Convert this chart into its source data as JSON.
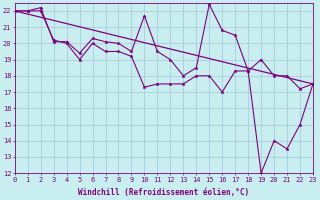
{
  "xlabel": "Windchill (Refroidissement éolien,°C)",
  "line_color": "#800080",
  "bg_color": "#c8eef0",
  "grid_color": "#a0c8d8",
  "xlim": [
    0,
    23
  ],
  "ylim": [
    12,
    22.5
  ],
  "xtick_vals": [
    0,
    1,
    2,
    3,
    4,
    5,
    6,
    7,
    8,
    9,
    10,
    11,
    12,
    13,
    14,
    15,
    16,
    17,
    18,
    19,
    20,
    21,
    22,
    23
  ],
  "ytick_vals": [
    12,
    13,
    14,
    15,
    16,
    17,
    18,
    19,
    20,
    21,
    22
  ],
  "line1_x": [
    0,
    1,
    2,
    3,
    4,
    5,
    6,
    7,
    8,
    9,
    10,
    11,
    12,
    13,
    14,
    15,
    16,
    17,
    18,
    19,
    20,
    21,
    22,
    23
  ],
  "line1_y": [
    22.0,
    22.0,
    22.2,
    20.1,
    20.1,
    19.4,
    20.3,
    20.1,
    20.0,
    19.5,
    21.7,
    19.5,
    19.0,
    18.0,
    18.5,
    22.4,
    20.8,
    20.5,
    18.3,
    19.0,
    18.0,
    18.0,
    17.2,
    17.5
  ],
  "line2_x": [
    0,
    23
  ],
  "line2_y": [
    22.0,
    17.5
  ],
  "line3_x": [
    0,
    1,
    2,
    3,
    4,
    5,
    6,
    7,
    8,
    9,
    10,
    11,
    12,
    13,
    14,
    15,
    16,
    17,
    18,
    19,
    20,
    21,
    22,
    23
  ],
  "line3_y": [
    22.0,
    22.0,
    22.0,
    20.2,
    20.0,
    19.0,
    20.0,
    19.5,
    19.5,
    19.2,
    17.3,
    17.5,
    17.5,
    17.5,
    18.0,
    18.0,
    17.0,
    18.3,
    18.3,
    12.0,
    14.0,
    13.5,
    15.0,
    17.5
  ],
  "tick_fontsize": 5.0,
  "xlabel_fontsize": 5.5
}
